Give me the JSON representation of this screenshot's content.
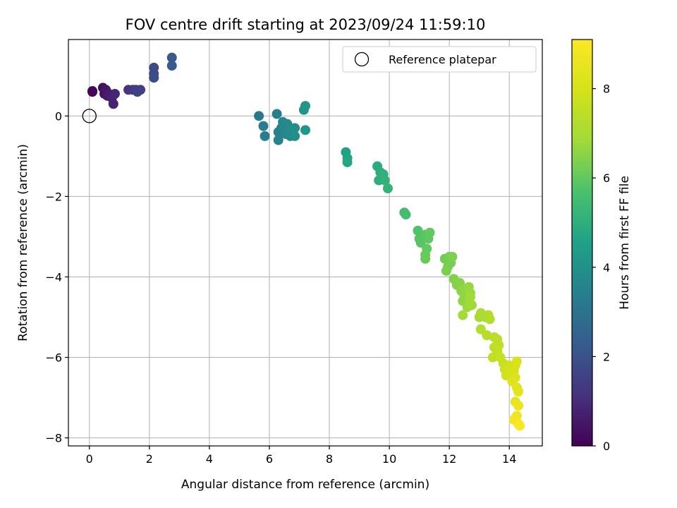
{
  "chart_data": {
    "type": "scatter",
    "title": "FOV centre drift starting at 2023/09/24 11:59:10",
    "xlabel": "Angular distance from reference (arcmin)",
    "ylabel": "Rotation from reference (arcmin)",
    "xlim": [
      -0.7,
      15.1
    ],
    "ylim": [
      -8.2,
      1.9
    ],
    "xticks": [
      0,
      2,
      4,
      6,
      8,
      10,
      12,
      14
    ],
    "yticks": [
      0,
      -2,
      -4,
      -6,
      -8
    ],
    "grid": true,
    "legend": {
      "position": "top-right",
      "entries": [
        "Reference platepar"
      ]
    },
    "reference_point": {
      "x": 0,
      "y": 0,
      "label": "Reference platepar"
    },
    "colorbar": {
      "label": "Hours from first FF file",
      "min": 0,
      "max": 9.1,
      "ticks": [
        0,
        2,
        4,
        6,
        8
      ],
      "colormap": "viridis"
    },
    "points": [
      [
        0.1,
        0.6,
        0.05
      ],
      [
        0.1,
        0.62,
        0.1
      ],
      [
        0.45,
        0.7,
        0.3
      ],
      [
        0.5,
        0.55,
        0.4
      ],
      [
        0.55,
        0.65,
        0.5
      ],
      [
        0.6,
        0.5,
        0.6
      ],
      [
        0.65,
        0.55,
        0.65
      ],
      [
        0.75,
        0.45,
        0.75
      ],
      [
        0.8,
        0.3,
        0.8
      ],
      [
        0.85,
        0.55,
        0.85
      ],
      [
        1.3,
        0.65,
        1.2
      ],
      [
        1.45,
        0.65,
        1.3
      ],
      [
        1.55,
        0.65,
        1.4
      ],
      [
        1.7,
        0.65,
        1.5
      ],
      [
        1.6,
        0.6,
        1.55
      ],
      [
        2.15,
        1.2,
        1.8
      ],
      [
        2.15,
        1.05,
        1.85
      ],
      [
        2.15,
        0.95,
        1.9
      ],
      [
        2.75,
        1.45,
        2.2
      ],
      [
        2.75,
        1.25,
        2.25
      ],
      [
        5.65,
        0.0,
        3.2
      ],
      [
        5.8,
        -0.25,
        3.3
      ],
      [
        5.85,
        -0.5,
        3.35
      ],
      [
        6.25,
        0.05,
        3.4
      ],
      [
        6.3,
        -0.4,
        3.45
      ],
      [
        6.3,
        -0.6,
        3.5
      ],
      [
        6.4,
        -0.3,
        3.55
      ],
      [
        6.45,
        -0.15,
        3.6
      ],
      [
        6.5,
        -0.25,
        3.65
      ],
      [
        6.55,
        -0.45,
        3.7
      ],
      [
        6.6,
        -0.2,
        3.75
      ],
      [
        6.7,
        -0.5,
        3.8
      ],
      [
        6.75,
        -0.35,
        3.85
      ],
      [
        6.85,
        -0.3,
        3.9
      ],
      [
        6.85,
        -0.5,
        3.95
      ],
      [
        7.15,
        0.15,
        4.1
      ],
      [
        7.2,
        0.25,
        4.15
      ],
      [
        7.2,
        -0.35,
        4.2
      ],
      [
        8.55,
        -0.9,
        4.6
      ],
      [
        8.6,
        -1.05,
        4.65
      ],
      [
        8.6,
        -1.15,
        4.7
      ],
      [
        9.6,
        -1.25,
        4.9
      ],
      [
        9.7,
        -1.4,
        4.95
      ],
      [
        9.65,
        -1.6,
        5.0
      ],
      [
        9.8,
        -1.45,
        5.05
      ],
      [
        9.85,
        -1.6,
        5.1
      ],
      [
        9.95,
        -1.8,
        5.15
      ],
      [
        10.5,
        -2.4,
        5.5
      ],
      [
        10.55,
        -2.45,
        5.55
      ],
      [
        10.95,
        -2.85,
        5.75
      ],
      [
        11.0,
        -3.05,
        5.8
      ],
      [
        11.05,
        -3.15,
        5.85
      ],
      [
        11.2,
        -2.95,
        5.9
      ],
      [
        11.3,
        -3.05,
        5.95
      ],
      [
        11.35,
        -2.9,
        6.0
      ],
      [
        11.25,
        -3.3,
        6.0
      ],
      [
        11.2,
        -3.45,
        6.05
      ],
      [
        11.2,
        -3.55,
        6.1
      ],
      [
        11.85,
        -3.55,
        6.2
      ],
      [
        12.0,
        -3.5,
        6.25
      ],
      [
        12.05,
        -3.65,
        6.3
      ],
      [
        12.1,
        -3.5,
        6.35
      ],
      [
        11.95,
        -3.75,
        6.3
      ],
      [
        11.9,
        -3.85,
        6.35
      ],
      [
        12.15,
        -4.05,
        6.4
      ],
      [
        12.25,
        -4.2,
        6.45
      ],
      [
        12.35,
        -4.15,
        6.5
      ],
      [
        12.4,
        -4.35,
        6.55
      ],
      [
        12.5,
        -4.45,
        6.6
      ],
      [
        12.45,
        -4.6,
        6.6
      ],
      [
        12.55,
        -4.3,
        6.65
      ],
      [
        12.65,
        -4.25,
        6.7
      ],
      [
        12.7,
        -4.4,
        6.75
      ],
      [
        12.65,
        -4.6,
        6.75
      ],
      [
        12.6,
        -4.75,
        6.8
      ],
      [
        12.75,
        -4.7,
        6.85
      ],
      [
        12.7,
        -4.5,
        6.85
      ],
      [
        12.45,
        -4.95,
        6.9
      ],
      [
        13.0,
        -5.0,
        7.0
      ],
      [
        13.05,
        -4.9,
        7.05
      ],
      [
        13.2,
        -5.0,
        7.1
      ],
      [
        13.3,
        -4.95,
        7.15
      ],
      [
        13.35,
        -5.05,
        7.2
      ],
      [
        13.05,
        -5.3,
        7.2
      ],
      [
        13.25,
        -5.45,
        7.3
      ],
      [
        13.5,
        -5.5,
        7.35
      ],
      [
        13.6,
        -5.55,
        7.4
      ],
      [
        13.5,
        -5.75,
        7.45
      ],
      [
        13.65,
        -5.7,
        7.5
      ],
      [
        13.6,
        -5.85,
        7.55
      ],
      [
        13.45,
        -6.0,
        7.6
      ],
      [
        13.7,
        -6.0,
        7.65
      ],
      [
        13.8,
        -6.15,
        7.7
      ],
      [
        13.85,
        -6.3,
        7.75
      ],
      [
        13.95,
        -6.3,
        7.8
      ],
      [
        13.9,
        -6.45,
        7.85
      ],
      [
        14.0,
        -6.2,
        7.9
      ],
      [
        14.05,
        -6.4,
        7.95
      ],
      [
        14.15,
        -6.35,
        8.0
      ],
      [
        14.2,
        -6.2,
        8.05
      ],
      [
        14.25,
        -6.1,
        8.1
      ],
      [
        14.2,
        -6.5,
        8.15
      ],
      [
        14.1,
        -6.6,
        8.2
      ],
      [
        14.25,
        -6.75,
        8.3
      ],
      [
        14.3,
        -6.85,
        8.35
      ],
      [
        14.2,
        -7.1,
        8.5
      ],
      [
        14.3,
        -7.2,
        8.6
      ],
      [
        14.25,
        -7.45,
        8.7
      ],
      [
        14.15,
        -7.55,
        8.8
      ],
      [
        14.3,
        -7.65,
        8.9
      ],
      [
        14.35,
        -7.7,
        9.0
      ]
    ]
  }
}
